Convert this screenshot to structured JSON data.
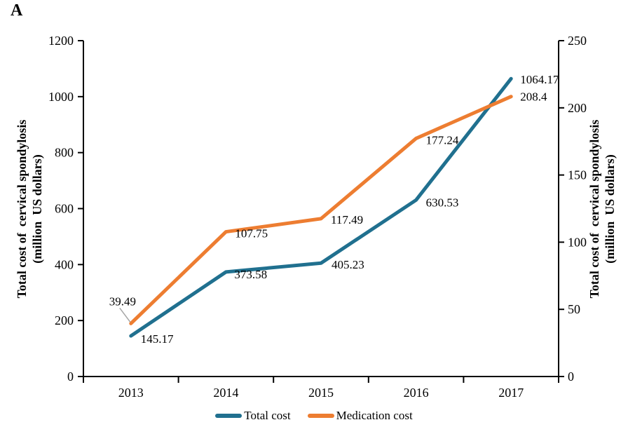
{
  "panel_label": "A",
  "colors": {
    "total": "#20708F",
    "medication": "#ED7D31",
    "axis": "#000000",
    "leader_line": "#A6A6A6",
    "text": "#000000"
  },
  "left_axis": {
    "title_line1": "Total cost of  cervical spondylosis",
    "title_line2": "(million  US dollars)",
    "ticks": [
      "0",
      "200",
      "400",
      "600",
      "800",
      "1000",
      "1200"
    ],
    "min": 0,
    "max": 1200
  },
  "right_axis": {
    "title_line1": "Total cost of  cervical spondylosis",
    "title_line2": "(million  US dollars)",
    "ticks": [
      "0",
      "50",
      "100",
      "150",
      "200",
      "250"
    ],
    "min": 0,
    "max": 250
  },
  "legend": {
    "items": [
      {
        "label": "Total cost",
        "color_key": "total"
      },
      {
        "label": "Medication cost",
        "color_key": "medication"
      }
    ]
  },
  "chart_data": {
    "type": "line",
    "title": "",
    "categories": [
      "2013",
      "2014",
      "2015",
      "2016",
      "2017"
    ],
    "series": [
      {
        "name": "Total cost",
        "axis": "left",
        "color_key": "total",
        "values": [
          145.17,
          373.58,
          405.23,
          630.53,
          1064.17
        ],
        "point_labels": [
          "145.17",
          "373.58",
          "405.23",
          "630.53",
          "1064.17"
        ]
      },
      {
        "name": "Medication cost",
        "axis": "right",
        "color_key": "medication",
        "values": [
          39.49,
          107.75,
          117.49,
          177.24,
          208.4
        ],
        "point_labels": [
          "39.49",
          "107.75",
          "117.49",
          "177.24",
          "208.4"
        ]
      }
    ],
    "left_ylim": [
      0,
      1200
    ],
    "right_ylim": [
      0,
      250
    ],
    "grid": false,
    "legend_position": "bottom"
  }
}
